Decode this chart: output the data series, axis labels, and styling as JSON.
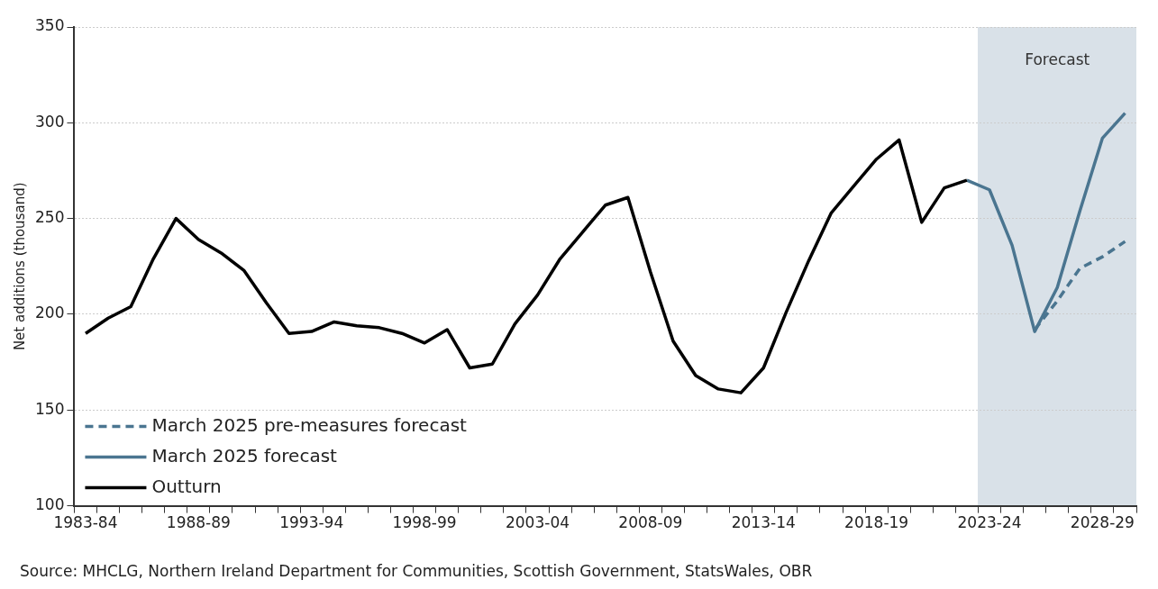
{
  "chart_data": {
    "type": "line",
    "ylabel": "Net additions (thousand)",
    "categories": [
      "1983-84",
      null,
      null,
      null,
      null,
      "1988-89",
      null,
      null,
      null,
      null,
      "1993-94",
      null,
      null,
      null,
      null,
      "1998-99",
      null,
      null,
      null,
      null,
      "2003-04",
      null,
      null,
      null,
      null,
      "2008-09",
      null,
      null,
      null,
      null,
      "2013-14",
      null,
      null,
      null,
      null,
      "2018-19",
      null,
      null,
      null,
      null,
      "2023-24",
      null,
      null,
      null,
      null,
      "2028-29",
      null
    ],
    "series": [
      {
        "name": "March 2025 pre-measures forecast",
        "color": "#4a7590",
        "line_style": "dashed",
        "values": [
          null,
          null,
          null,
          null,
          null,
          null,
          null,
          null,
          null,
          null,
          null,
          null,
          null,
          null,
          null,
          null,
          null,
          null,
          null,
          null,
          null,
          null,
          null,
          null,
          null,
          null,
          null,
          null,
          null,
          null,
          null,
          null,
          null,
          null,
          null,
          null,
          null,
          null,
          null,
          null,
          null,
          null,
          192,
          207,
          224,
          230,
          238
        ]
      },
      {
        "name": "March 2025 forecast",
        "color": "#4a7590",
        "line_style": "solid",
        "values": [
          null,
          null,
          null,
          null,
          null,
          null,
          null,
          null,
          null,
          null,
          null,
          null,
          null,
          null,
          null,
          null,
          null,
          null,
          null,
          null,
          null,
          null,
          null,
          null,
          null,
          null,
          null,
          null,
          null,
          null,
          null,
          null,
          null,
          null,
          null,
          null,
          null,
          null,
          null,
          270,
          265,
          236,
          191,
          214,
          254,
          292,
          305
        ]
      },
      {
        "name": "Outturn",
        "color": "#000000",
        "line_style": "solid",
        "values": [
          190,
          198,
          204,
          229,
          250,
          239,
          232,
          223,
          206,
          190,
          191,
          196,
          194,
          193,
          190,
          185,
          192,
          172,
          174,
          195,
          210,
          229,
          243,
          257,
          261,
          222,
          186,
          168,
          161,
          159,
          172,
          201,
          228,
          253,
          267,
          281,
          291,
          248,
          266,
          270,
          null,
          null,
          null,
          null,
          null,
          null,
          null
        ]
      }
    ],
    "ylim": [
      100,
      350
    ],
    "yticks": [
      100,
      150,
      200,
      250,
      300,
      350
    ],
    "grid": "y",
    "legend": "bottom left",
    "marker": "none",
    "annotations": [
      "Forecast",
      "Source: MHCLG, Northern Ireland Department for Communities, Scottish Government, StatsWales, OBR"
    ]
  }
}
